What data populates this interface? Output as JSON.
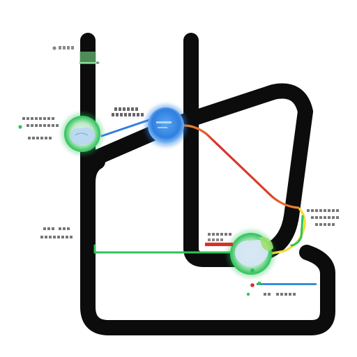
{
  "colors": {
    "track": "#0c0c0c",
    "green": "#2fc25a",
    "green_soft": "#7ddf8e",
    "blue": "#2f7fe0",
    "blue_soft": "#8fc2f5",
    "red": "#d8312a",
    "orange": "#f08a2a",
    "yellow": "#f2dd3c",
    "label_text": "#555555",
    "label_red": "#d8312a",
    "label_blue": "#3a8fd8",
    "label_green": "#2fc25a"
  },
  "nodes": [
    {
      "id": "node-left-green",
      "kind": "green-map-circle"
    },
    {
      "id": "node-top-blue",
      "kind": "blue-map-circle"
    },
    {
      "id": "node-bottom-green",
      "kind": "green-map-circle"
    }
  ],
  "labels": [
    {
      "id": "label-top-left",
      "color": "gray"
    },
    {
      "id": "label-left-node",
      "color": "gray"
    },
    {
      "id": "label-blue-node",
      "color": "gray"
    },
    {
      "id": "label-left-mid",
      "color": "gray"
    },
    {
      "id": "label-right",
      "color": "gray"
    },
    {
      "id": "label-bottom-red",
      "color": "red"
    },
    {
      "id": "label-bottom-blue",
      "color": "blue"
    }
  ]
}
